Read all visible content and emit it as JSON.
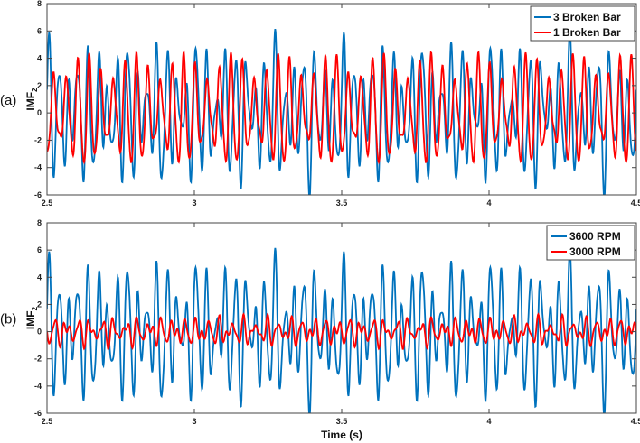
{
  "chart_data": [
    {
      "type": "line",
      "panel_label": "(a)",
      "ylabel": "IMF",
      "ylabel_sub": "2",
      "xlabel": "",
      "xlim": [
        2.5,
        4.5
      ],
      "ylim": [
        -6,
        8
      ],
      "xticks": [
        "2.5",
        "3",
        "3.5",
        "4",
        "4.5"
      ],
      "yticks": [
        "-6",
        "-4",
        "-2",
        "0",
        "2",
        "4",
        "6",
        "8"
      ],
      "legend": "top-right",
      "series": [
        {
          "name": "3 Broken Bar",
          "color": "#0072BD",
          "components": [
            [
              3.2,
              30,
              0.3
            ],
            [
              1.6,
              22,
              1.1
            ],
            [
              1.0,
              47,
              2.0
            ],
            [
              0.6,
              12,
              0.4
            ]
          ]
        },
        {
          "name": "1 Broken Bar",
          "color": "#FF0000",
          "components": [
            [
              3.0,
              25,
              0.9
            ],
            [
              1.0,
              31,
              2.3
            ],
            [
              0.5,
              50,
              0.7
            ]
          ]
        }
      ]
    },
    {
      "type": "line",
      "panel_label": "(b)",
      "ylabel": "IMF",
      "ylabel_sub": "2",
      "xlabel": "Time (s)",
      "xlim": [
        2.5,
        4.5
      ],
      "ylim": [
        -6,
        8
      ],
      "xticks": [
        "2.5",
        "3",
        "3.5",
        "4",
        "4.5"
      ],
      "yticks": [
        "-6",
        "-4",
        "-2",
        "0",
        "2",
        "4",
        "6",
        "8"
      ],
      "legend": "top-right",
      "series": [
        {
          "name": "3600 RPM",
          "color": "#0072BD",
          "components": [
            [
              3.2,
              30,
              0.3
            ],
            [
              1.6,
              22,
              1.1
            ],
            [
              1.0,
              47,
              2.0
            ],
            [
              0.6,
              12,
              0.4
            ]
          ]
        },
        {
          "name": "3000 RPM",
          "color": "#FF0000",
          "components": [
            [
              0.6,
              25,
              0.5
            ],
            [
              0.4,
              36,
              1.7
            ],
            [
              0.3,
              49,
              0.2
            ]
          ]
        }
      ]
    }
  ]
}
